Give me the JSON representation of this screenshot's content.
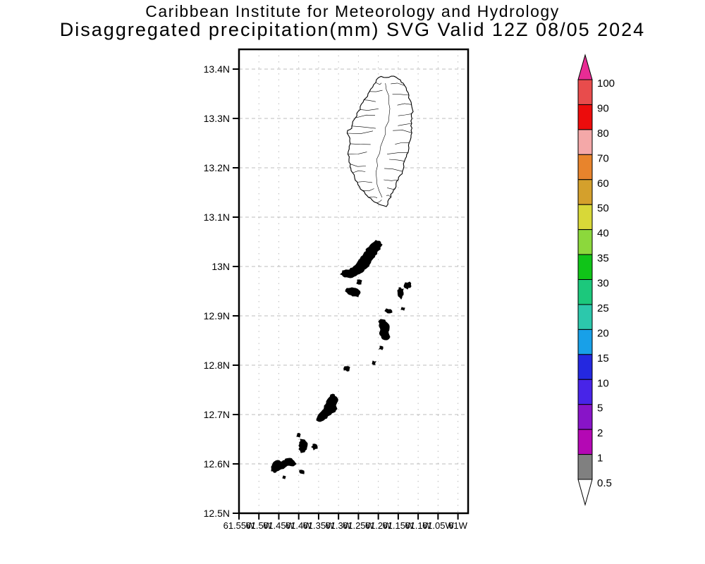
{
  "title": {
    "line1": "Caribbean Institute for Meteorology and Hydrology",
    "line2": "Disaggregated precipitation(mm) SVG Valid 12Z 08/05 2024"
  },
  "axes": {
    "lat_ticks": [
      {
        "label": "13.4N",
        "lat": 13.4
      },
      {
        "label": "13.3N",
        "lat": 13.3
      },
      {
        "label": "13.2N",
        "lat": 13.2
      },
      {
        "label": "13.1N",
        "lat": 13.1
      },
      {
        "label": "13N",
        "lat": 13.0
      },
      {
        "label": "12.9N",
        "lat": 12.9
      },
      {
        "label": "12.8N",
        "lat": 12.8
      },
      {
        "label": "12.7N",
        "lat": 12.7
      },
      {
        "label": "12.6N",
        "lat": 12.6
      },
      {
        "label": "12.5N",
        "lat": 12.5
      }
    ],
    "lon_ticks": [
      {
        "label": "61.55W",
        "lon": 61.55
      },
      {
        "label": "61.5W",
        "lon": 61.5
      },
      {
        "label": "61.45W",
        "lon": 61.45
      },
      {
        "label": "61.4W",
        "lon": 61.4
      },
      {
        "label": "61.35W",
        "lon": 61.35
      },
      {
        "label": "61.3W",
        "lon": 61.3
      },
      {
        "label": "61.25W",
        "lon": 61.25
      },
      {
        "label": "61.2W",
        "lon": 61.2
      },
      {
        "label": "61.15W",
        "lon": 61.15
      },
      {
        "label": "61.1W",
        "lon": 61.1
      },
      {
        "label": "61.05W",
        "lon": 61.05
      },
      {
        "label": "61W",
        "lon": 61.0
      }
    ]
  },
  "colorbar": {
    "values": [
      "100",
      "90",
      "80",
      "70",
      "60",
      "50",
      "40",
      "35",
      "30",
      "25",
      "20",
      "15",
      "10",
      "5",
      "2",
      "1",
      "0.5"
    ],
    "box_colors_top_to_bottom": [
      "#e84c4c",
      "#ec0c0c",
      "#f4a8a8",
      "#e8842c",
      "#d4a02c",
      "#d8d838",
      "#8cd83c",
      "#10c418",
      "#1cc87c",
      "#2cc8ac",
      "#18a0e8",
      "#2428e0",
      "#4824e8",
      "#8814c8",
      "#b408b4",
      "#808080"
    ],
    "above_max_color": "#e82c94",
    "below_min_color": "#ffffff",
    "outline_color": "#000000"
  },
  "map_content": {
    "main_island": {
      "name": "st-vincent",
      "outline": [
        [
          198,
          40
        ],
        [
          216,
          38
        ],
        [
          226,
          42
        ],
        [
          233,
          48
        ],
        [
          241,
          65
        ],
        [
          246,
          85
        ],
        [
          245,
          105
        ],
        [
          244,
          125
        ],
        [
          241,
          140
        ],
        [
          236,
          155
        ],
        [
          233,
          170
        ],
        [
          226,
          185
        ],
        [
          219,
          200
        ],
        [
          213,
          212
        ],
        [
          209,
          223
        ],
        [
          199,
          220
        ],
        [
          189,
          214
        ],
        [
          179,
          205
        ],
        [
          171,
          195
        ],
        [
          164,
          182
        ],
        [
          159,
          172
        ],
        [
          156,
          160
        ],
        [
          155,
          145
        ],
        [
          157,
          130
        ],
        [
          154,
          115
        ],
        [
          160,
          112
        ],
        [
          163,
          100
        ],
        [
          169,
          88
        ],
        [
          176,
          75
        ],
        [
          183,
          63
        ],
        [
          191,
          50
        ]
      ]
    },
    "small_islands": [
      {
        "name": "bequia",
        "points": [
          [
            199,
            272
          ],
          [
            203,
            277
          ],
          [
            198,
            285
          ],
          [
            193,
            292
          ],
          [
            189,
            298
          ],
          [
            185,
            305
          ],
          [
            180,
            311
          ],
          [
            173,
            317
          ],
          [
            166,
            321
          ],
          [
            158,
            324
          ],
          [
            150,
            323
          ],
          [
            144,
            319
          ],
          [
            147,
            314
          ],
          [
            154,
            313
          ],
          [
            161,
            310
          ],
          [
            167,
            304
          ],
          [
            172,
            297
          ],
          [
            177,
            290
          ],
          [
            182,
            282
          ],
          [
            188,
            276
          ],
          [
            194,
            271
          ]
        ]
      },
      {
        "name": "petit-nevis",
        "points": [
          [
            168,
            327
          ],
          [
            174,
            328
          ],
          [
            173,
            333
          ],
          [
            167,
            332
          ]
        ]
      },
      {
        "name": "isle-a-quatre",
        "points": [
          [
            153,
            339
          ],
          [
            160,
            338
          ],
          [
            168,
            340
          ],
          [
            172,
            345
          ],
          [
            169,
            351
          ],
          [
            161,
            350
          ],
          [
            155,
            347
          ],
          [
            151,
            343
          ]
        ]
      },
      {
        "name": "battowia",
        "points": [
          [
            236,
            331
          ],
          [
            242,
            330
          ],
          [
            244,
            336
          ],
          [
            239,
            340
          ],
          [
            234,
            336
          ]
        ]
      },
      {
        "name": "baliceaux",
        "points": [
          [
            227,
            338
          ],
          [
            233,
            340
          ],
          [
            233,
            348
          ],
          [
            230,
            354
          ],
          [
            226,
            350
          ],
          [
            225,
            342
          ]
        ]
      },
      {
        "name": "islet-a",
        "points": [
          [
            231,
            366
          ],
          [
            235,
            367
          ],
          [
            234,
            370
          ],
          [
            230,
            369
          ]
        ]
      },
      {
        "name": "pillories",
        "points": [
          [
            209,
            368
          ],
          [
            215,
            369
          ],
          [
            217,
            373
          ],
          [
            211,
            374
          ],
          [
            207,
            371
          ]
        ]
      },
      {
        "name": "mustique",
        "points": [
          [
            201,
            383
          ],
          [
            207,
            384
          ],
          [
            211,
            389
          ],
          [
            213,
            396
          ],
          [
            212,
            403
          ],
          [
            214,
            408
          ],
          [
            210,
            412
          ],
          [
            204,
            411
          ],
          [
            200,
            405
          ],
          [
            201,
            398
          ],
          [
            199,
            391
          ],
          [
            198,
            386
          ]
        ]
      },
      {
        "name": "islet-b",
        "points": [
          [
            200,
            421
          ],
          [
            204,
            422
          ],
          [
            203,
            426
          ],
          [
            199,
            425
          ]
        ]
      },
      {
        "name": "petit-mustique",
        "points": [
          [
            190,
            442
          ],
          [
            194,
            443
          ],
          [
            193,
            447
          ],
          [
            189,
            446
          ]
        ]
      },
      {
        "name": "savan",
        "points": [
          [
            150,
            450
          ],
          [
            157,
            451
          ],
          [
            156,
            456
          ],
          [
            149,
            455
          ]
        ]
      },
      {
        "name": "canouan",
        "points": [
          [
            133,
            489
          ],
          [
            138,
            493
          ],
          [
            140,
            499
          ],
          [
            137,
            505
          ],
          [
            139,
            510
          ],
          [
            134,
            515
          ],
          [
            128,
            519
          ],
          [
            122,
            524
          ],
          [
            115,
            528
          ],
          [
            110,
            526
          ],
          [
            112,
            520
          ],
          [
            117,
            514
          ],
          [
            121,
            508
          ],
          [
            124,
            502
          ],
          [
            127,
            495
          ],
          [
            130,
            490
          ]
        ]
      },
      {
        "name": "islet-c",
        "points": [
          [
            83,
            545
          ],
          [
            87,
            546
          ],
          [
            86,
            550
          ],
          [
            82,
            549
          ]
        ]
      },
      {
        "name": "mayreau",
        "points": [
          [
            87,
            553
          ],
          [
            93,
            554
          ],
          [
            97,
            559
          ],
          [
            96,
            565
          ],
          [
            93,
            571
          ],
          [
            88,
            572
          ],
          [
            85,
            567
          ],
          [
            86,
            560
          ]
        ]
      },
      {
        "name": "catholic-island",
        "points": [
          [
            105,
            560
          ],
          [
            110,
            561
          ],
          [
            111,
            566
          ],
          [
            106,
            568
          ],
          [
            103,
            564
          ]
        ]
      },
      {
        "name": "union-island",
        "points": [
          [
            46,
            592
          ],
          [
            49,
            586
          ],
          [
            55,
            583
          ],
          [
            61,
            585
          ],
          [
            66,
            581
          ],
          [
            72,
            580
          ],
          [
            78,
            584
          ],
          [
            81,
            588
          ],
          [
            77,
            591
          ],
          [
            71,
            590
          ],
          [
            65,
            593
          ],
          [
            58,
            596
          ],
          [
            52,
            600
          ],
          [
            46,
            598
          ]
        ]
      },
      {
        "name": "palm-island",
        "points": [
          [
            86,
            597
          ],
          [
            92,
            598
          ],
          [
            92,
            602
          ],
          [
            87,
            601
          ]
        ]
      },
      {
        "name": "islet-d",
        "points": [
          [
            63,
            605
          ],
          [
            66,
            606
          ],
          [
            65,
            609
          ],
          [
            62,
            608
          ]
        ]
      }
    ]
  },
  "style": {
    "grid_color": "#bcbcbc",
    "frame_color": "#000000",
    "text_color": "#000000",
    "background": "#ffffff",
    "island_fill": "#000000",
    "main_island_fill": "#ffffff"
  }
}
